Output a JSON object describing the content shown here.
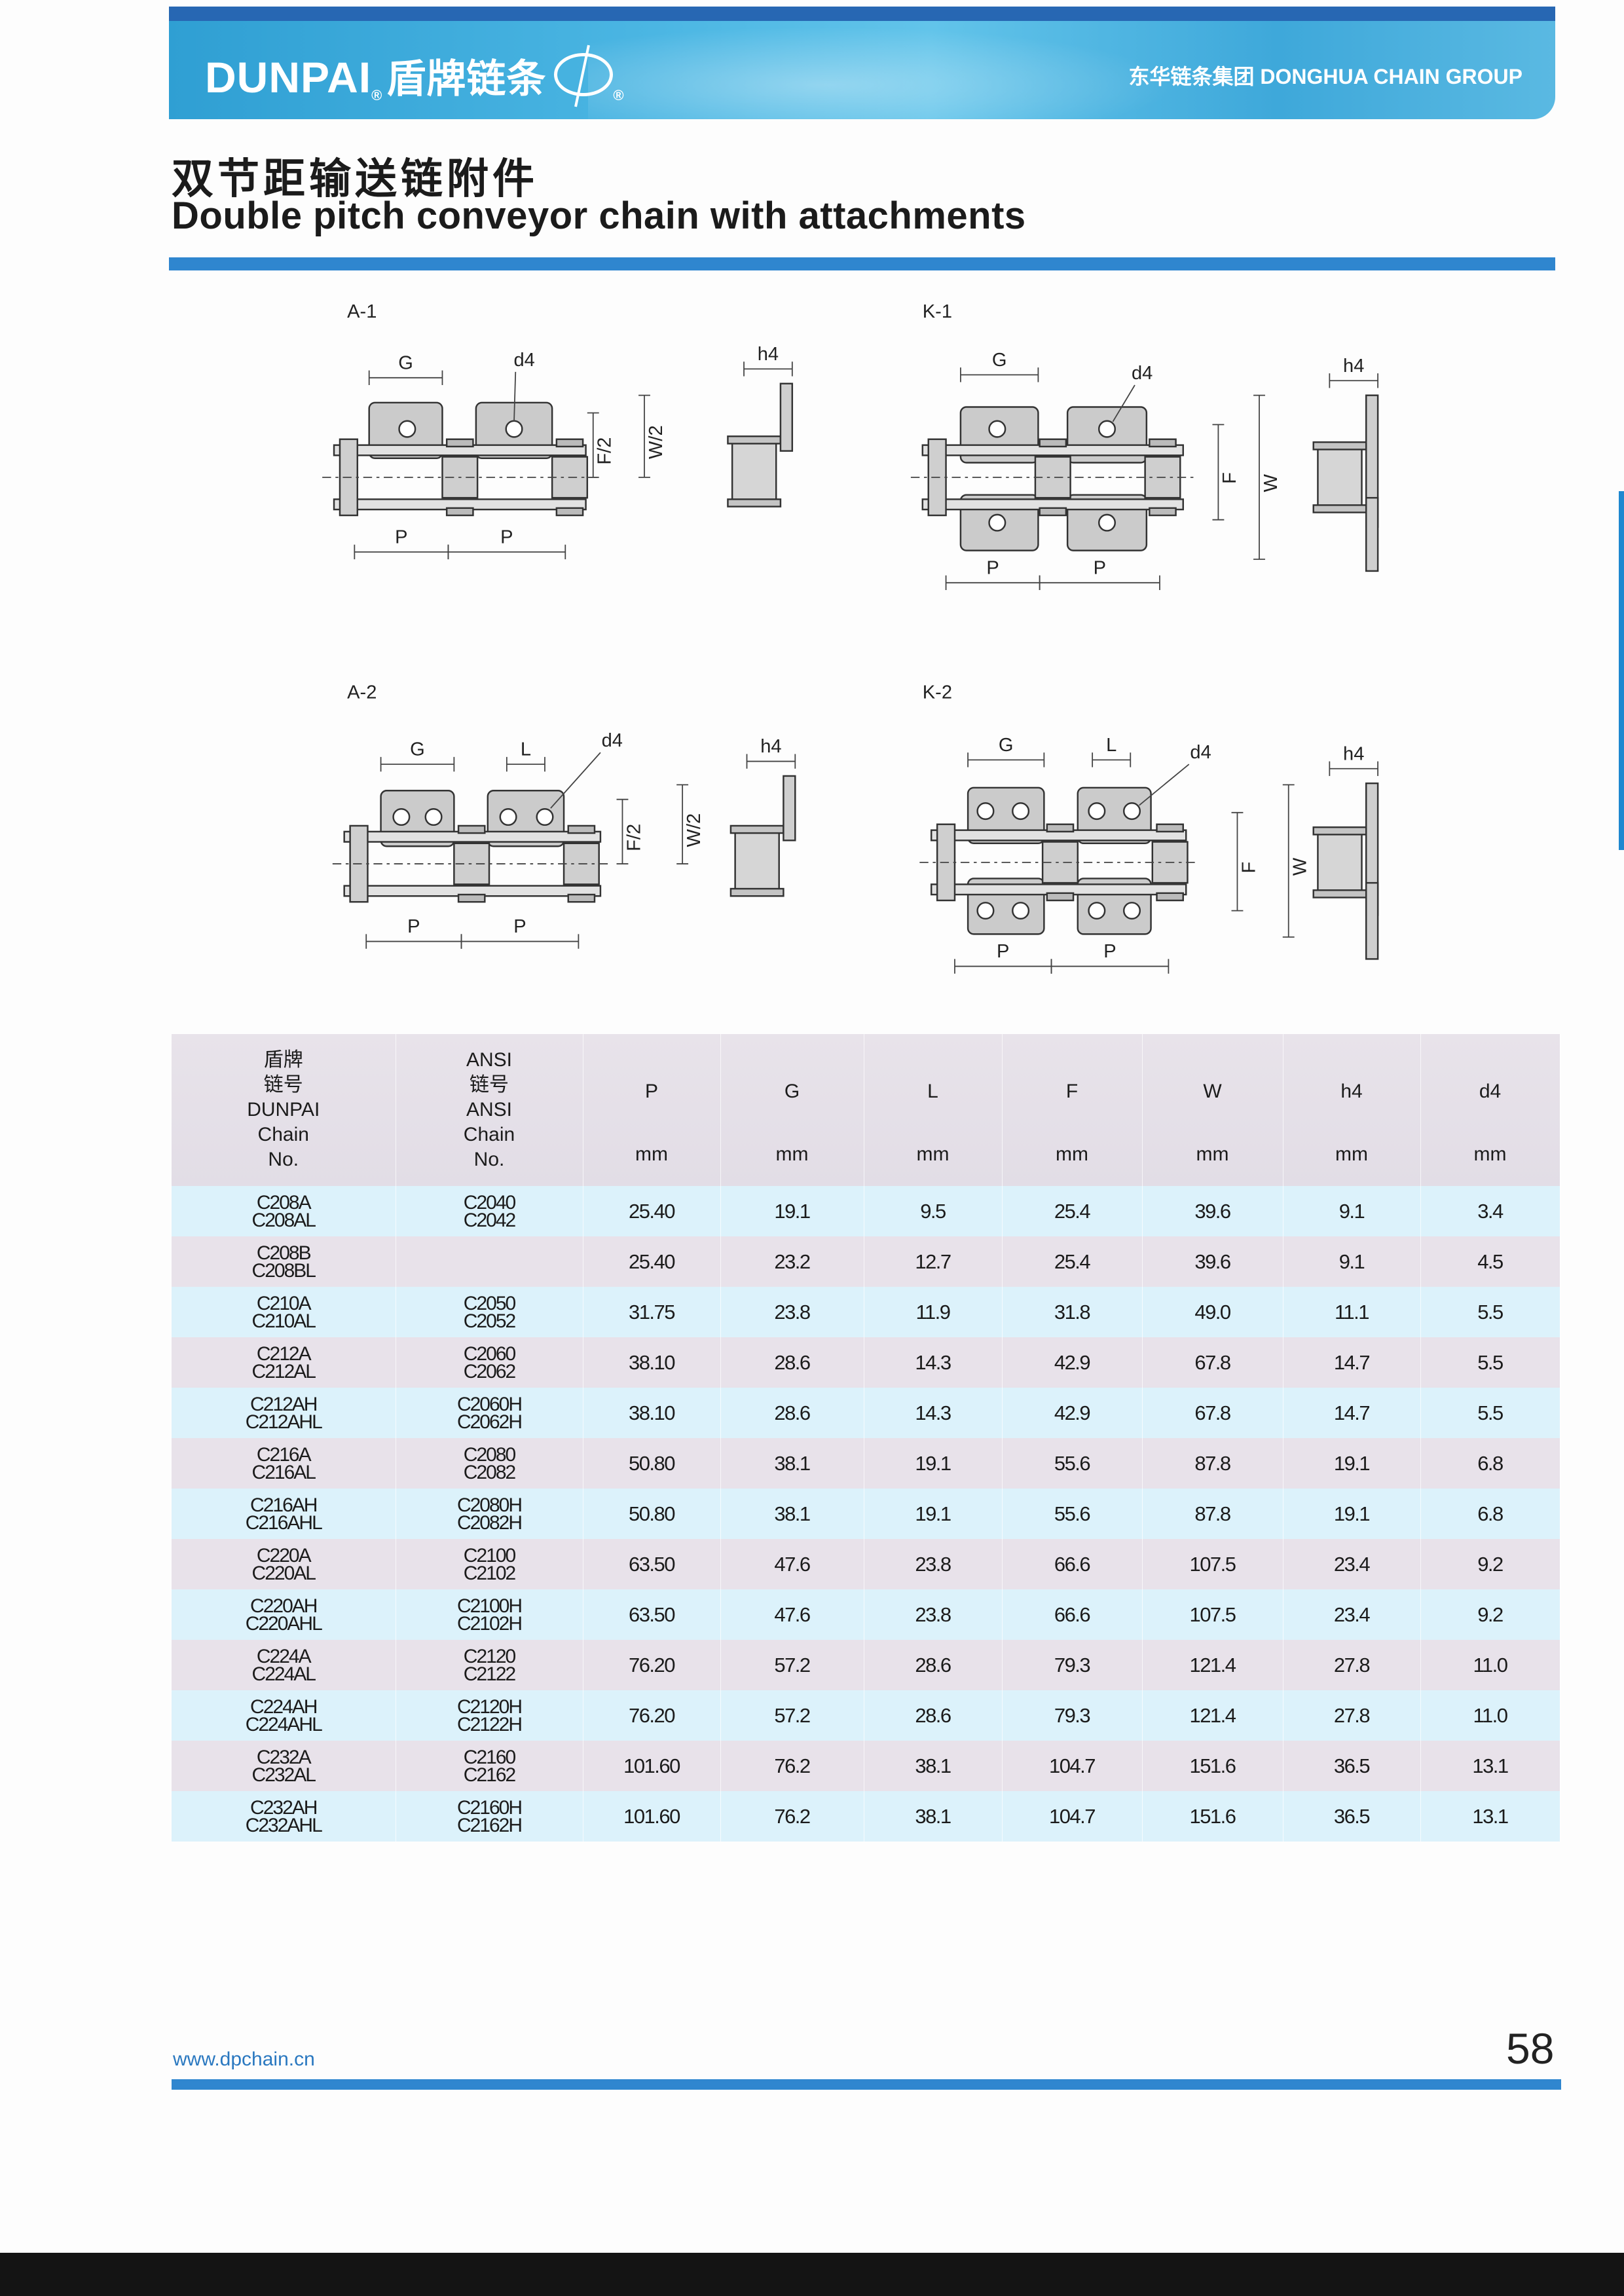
{
  "header": {
    "brand": "DUNPAI",
    "brand_cn": "盾牌链条",
    "group": "东华链条集团 DONGHUA CHAIN GROUP"
  },
  "title": {
    "cn": "双节距输送链附件",
    "en": "Double pitch conveyor  chain with attachments"
  },
  "diagrams": {
    "a1": {
      "label": "A-1"
    },
    "k1": {
      "label": "K-1"
    },
    "a2": {
      "label": "A-2"
    },
    "k2": {
      "label": "K-2"
    },
    "dims": {
      "G": "G",
      "d4": "d4",
      "h4": "h4",
      "F2": "F/2",
      "W2": "W/2",
      "P": "P",
      "L": "L",
      "F": "F",
      "W": "W"
    }
  },
  "table": {
    "header": {
      "dunpai": [
        "盾牌",
        "链号",
        "DUNPAI",
        "Chain",
        "No."
      ],
      "ansi": [
        "ANSI",
        "链号",
        "ANSI",
        "Chain",
        "No."
      ],
      "params": [
        {
          "sym": "P",
          "unit": "mm"
        },
        {
          "sym": "G",
          "unit": "mm"
        },
        {
          "sym": "L",
          "unit": "mm"
        },
        {
          "sym": "F",
          "unit": "mm"
        },
        {
          "sym": "W",
          "unit": "mm"
        },
        {
          "sym": "h4",
          "unit": "mm"
        },
        {
          "sym": "d4",
          "unit": "mm"
        }
      ]
    },
    "rows": [
      {
        "dunpai": [
          "C208A",
          "C208AL"
        ],
        "ansi": [
          "C2040",
          "C2042"
        ],
        "values": [
          "25.40",
          "19.1",
          "9.5",
          "25.4",
          "39.6",
          "9.1",
          "3.4"
        ]
      },
      {
        "dunpai": [
          "C208B",
          "C208BL"
        ],
        "ansi": [
          "",
          ""
        ],
        "values": [
          "25.40",
          "23.2",
          "12.7",
          "25.4",
          "39.6",
          "9.1",
          "4.5"
        ]
      },
      {
        "dunpai": [
          "C210A",
          "C210AL"
        ],
        "ansi": [
          "C2050",
          "C2052"
        ],
        "values": [
          "31.75",
          "23.8",
          "11.9",
          "31.8",
          "49.0",
          "11.1",
          "5.5"
        ]
      },
      {
        "dunpai": [
          "C212A",
          "C212AL"
        ],
        "ansi": [
          "C2060",
          "C2062"
        ],
        "values": [
          "38.10",
          "28.6",
          "14.3",
          "42.9",
          "67.8",
          "14.7",
          "5.5"
        ]
      },
      {
        "dunpai": [
          "C212AH",
          "C212AHL"
        ],
        "ansi": [
          "C2060H",
          "C2062H"
        ],
        "values": [
          "38.10",
          "28.6",
          "14.3",
          "42.9",
          "67.8",
          "14.7",
          "5.5"
        ]
      },
      {
        "dunpai": [
          "C216A",
          "C216AL"
        ],
        "ansi": [
          "C2080",
          "C2082"
        ],
        "values": [
          "50.80",
          "38.1",
          "19.1",
          "55.6",
          "87.8",
          "19.1",
          "6.8"
        ]
      },
      {
        "dunpai": [
          "C216AH",
          "C216AHL"
        ],
        "ansi": [
          "C2080H",
          "C2082H"
        ],
        "values": [
          "50.80",
          "38.1",
          "19.1",
          "55.6",
          "87.8",
          "19.1",
          "6.8"
        ]
      },
      {
        "dunpai": [
          "C220A",
          "C220AL"
        ],
        "ansi": [
          "C2100",
          "C2102"
        ],
        "values": [
          "63.50",
          "47.6",
          "23.8",
          "66.6",
          "107.5",
          "23.4",
          "9.2"
        ]
      },
      {
        "dunpai": [
          "C220AH",
          "C220AHL"
        ],
        "ansi": [
          "C2100H",
          "C2102H"
        ],
        "values": [
          "63.50",
          "47.6",
          "23.8",
          "66.6",
          "107.5",
          "23.4",
          "9.2"
        ]
      },
      {
        "dunpai": [
          "C224A",
          "C224AL"
        ],
        "ansi": [
          "C2120",
          "C2122"
        ],
        "values": [
          "76.20",
          "57.2",
          "28.6",
          "79.3",
          "121.4",
          "27.8",
          "11.0"
        ]
      },
      {
        "dunpai": [
          "C224AH",
          "C224AHL"
        ],
        "ansi": [
          "C2120H",
          "C2122H"
        ],
        "values": [
          "76.20",
          "57.2",
          "28.6",
          "79.3",
          "121.4",
          "27.8",
          "11.0"
        ]
      },
      {
        "dunpai": [
          "C232A",
          "C232AL"
        ],
        "ansi": [
          "C2160",
          "C2162"
        ],
        "values": [
          "101.60",
          "76.2",
          "38.1",
          "104.7",
          "151.6",
          "36.5",
          "13.1"
        ]
      },
      {
        "dunpai": [
          "C232AH",
          "C232AHL"
        ],
        "ansi": [
          "C2160H",
          "C2162H"
        ],
        "values": [
          "101.60",
          "76.2",
          "38.1",
          "104.7",
          "151.6",
          "36.5",
          "13.1"
        ]
      }
    ]
  },
  "footer": {
    "website": "www.dpchain.cn",
    "page_number": "58"
  },
  "colors": {
    "banner": "#3ea8da",
    "rule": "#2f86cf",
    "row_blue": "#dcf2fb",
    "row_pink": "#e8e2ea"
  }
}
